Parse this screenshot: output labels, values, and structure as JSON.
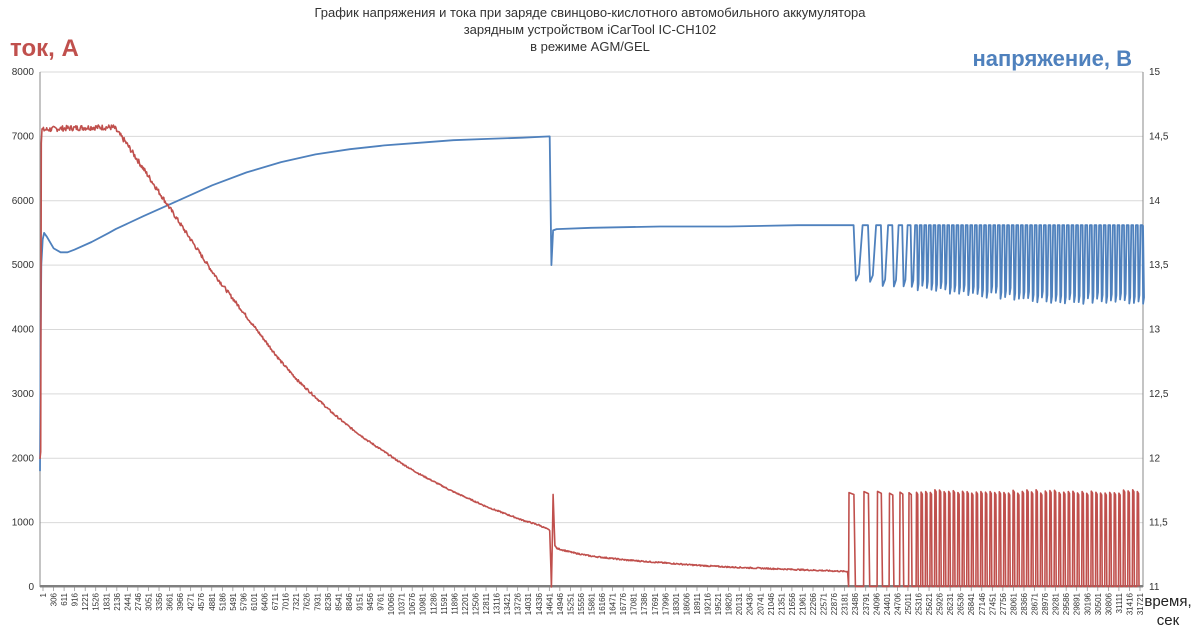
{
  "chart_data": {
    "type": "line",
    "title_lines": [
      "График напряжения и тока при заряде свинцово-кислотного автомобильного аккумулятора",
      "зарядным устройством iCarTool IC-CH102",
      "в режиме AGM/GEL"
    ],
    "ylabel_left": "ток, А",
    "ylabel_right": "напряжение, В",
    "xlabel_lines": [
      "время,",
      "сек"
    ],
    "ylim_left": [
      0,
      8000
    ],
    "yticks_left": [
      "0",
      "1000",
      "2000",
      "3000",
      "4000",
      "5000",
      "6000",
      "7000",
      "8000"
    ],
    "ylim_right": [
      11,
      15
    ],
    "yticks_right": [
      "11",
      "11,5",
      "12",
      "12,5",
      "13",
      "13,5",
      "14",
      "14,5",
      "15"
    ],
    "xlim": [
      1,
      32026
    ],
    "xticks": [
      "1",
      "306",
      "611",
      "916",
      "1221",
      "1526",
      "1831",
      "2136",
      "2441",
      "2746",
      "3051",
      "3356",
      "3661",
      "3966",
      "4271",
      "4576",
      "4881",
      "5186",
      "5491",
      "5796",
      "6101",
      "6406",
      "6711",
      "7016",
      "7321",
      "7626",
      "7931",
      "8236",
      "8541",
      "8846",
      "9151",
      "9456",
      "9761",
      "10066",
      "10371",
      "10676",
      "10981",
      "11286",
      "11591",
      "11896",
      "12201",
      "12506",
      "12811",
      "13116",
      "13421",
      "13726",
      "14031",
      "14336",
      "14641",
      "14946",
      "15251",
      "15556",
      "15861",
      "16166",
      "16471",
      "16776",
      "17081",
      "17386",
      "17691",
      "17996",
      "18301",
      "18606",
      "18911",
      "19216",
      "19521",
      "19826",
      "20131",
      "20436",
      "20741",
      "21046",
      "21351",
      "21656",
      "21961",
      "22266",
      "22571",
      "22876",
      "23181",
      "23486",
      "23791",
      "24096",
      "24401",
      "24706",
      "25011",
      "25316",
      "25621",
      "25926",
      "26231",
      "26536",
      "26841",
      "27146",
      "27451",
      "27756",
      "28061",
      "28366",
      "28671",
      "28976",
      "29281",
      "29586",
      "29891",
      "30196",
      "30501",
      "30806",
      "31111",
      "31416",
      "31721"
    ],
    "grid": "horizontal",
    "series": [
      {
        "name": "ток, А",
        "axis": "left",
        "color": "#c0504d",
        "x": [
          1,
          20,
          40,
          60,
          100,
          500,
          1000,
          1500,
          2000,
          2150,
          2500,
          3000,
          3500,
          4000,
          4500,
          5000,
          5500,
          6000,
          6500,
          7000,
          7500,
          8000,
          8500,
          9000,
          9500,
          10000,
          10500,
          11000,
          11500,
          12000,
          12500,
          13000,
          13500,
          14000,
          14500,
          14800,
          14850,
          14900,
          14950,
          15000,
          15500,
          16000,
          17000,
          18000,
          19000,
          20000,
          21000,
          22000,
          23000,
          23450
        ],
        "y": [
          2000,
          2100,
          6900,
          7100,
          7100,
          7120,
          7130,
          7140,
          7140,
          7140,
          6900,
          6500,
          6100,
          5700,
          5300,
          4900,
          4550,
          4200,
          3850,
          3500,
          3200,
          2950,
          2700,
          2480,
          2280,
          2100,
          1920,
          1760,
          1620,
          1480,
          1360,
          1240,
          1140,
          1040,
          960,
          880,
          0,
          1430,
          650,
          600,
          530,
          480,
          420,
          380,
          340,
          310,
          290,
          270,
          250,
          240
        ],
        "pulse_region": {
          "x_start": 23450,
          "x_end": 32026,
          "peak": 1480,
          "baseline": 0,
          "max_peak": 2040
        }
      },
      {
        "name": "напряжение, В",
        "axis": "right",
        "color": "#4f81bd",
        "x": [
          1,
          20,
          40,
          80,
          120,
          200,
          400,
          600,
          800,
          1000,
          1500,
          2000,
          2200,
          3000,
          4000,
          5000,
          6000,
          7000,
          8000,
          9000,
          10000,
          11000,
          12000,
          13000,
          14000,
          14800,
          14850,
          14900,
          15000,
          16000,
          18000,
          20000,
          22000,
          23400
        ],
        "y": [
          11.9,
          13.0,
          13.5,
          13.7,
          13.75,
          13.72,
          13.63,
          13.6,
          13.6,
          13.62,
          13.68,
          13.75,
          13.78,
          13.88,
          14.0,
          14.12,
          14.22,
          14.3,
          14.36,
          14.4,
          14.43,
          14.45,
          14.47,
          14.48,
          14.49,
          14.5,
          13.5,
          13.77,
          13.78,
          13.79,
          13.8,
          13.8,
          13.81,
          13.81
        ],
        "pulse_region": {
          "x_start": 23450,
          "x_end": 32026,
          "high": 13.81,
          "low_start": 13.38,
          "low_end": 13.22
        }
      }
    ]
  }
}
